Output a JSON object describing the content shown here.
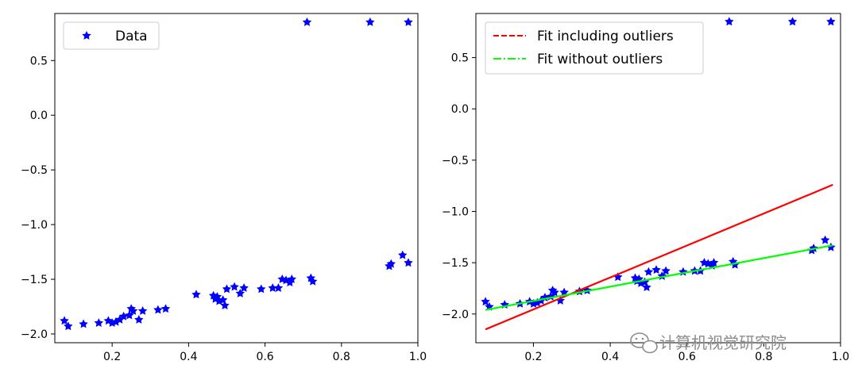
{
  "colors": {
    "data_marker": "#0000ff",
    "fit_with_outliers": "#ff0000",
    "fit_without_outliers": "#00ff00",
    "axes": "#000000",
    "watermark": "#8c8c8c"
  },
  "chart_data": [
    {
      "type": "scatter",
      "xlim": [
        0.05,
        1.0
      ],
      "ylim": [
        -2.08,
        0.93
      ],
      "xticks": [
        "0.2",
        "0.4",
        "0.6",
        "0.8",
        "1.0"
      ],
      "xtick_values": [
        0.2,
        0.4,
        0.6,
        0.8,
        1.0
      ],
      "yticks": [
        "0.5",
        "0.0",
        "−0.5",
        "−1.0",
        "−1.5",
        "−2.0"
      ],
      "ytick_values": [
        0.5,
        0.0,
        -0.5,
        -1.0,
        -1.5,
        -2.0
      ],
      "grid": false,
      "legend_position": "upper-left",
      "series": [
        {
          "name": "Data",
          "marker": "star",
          "color": "#0000ff",
          "points": [
            [
              0.075,
              -1.88
            ],
            [
              0.085,
              -1.93
            ],
            [
              0.125,
              -1.91
            ],
            [
              0.165,
              -1.9
            ],
            [
              0.19,
              -1.88
            ],
            [
              0.2,
              -1.9
            ],
            [
              0.21,
              -1.89
            ],
            [
              0.22,
              -1.87
            ],
            [
              0.23,
              -1.84
            ],
            [
              0.245,
              -1.83
            ],
            [
              0.25,
              -1.77
            ],
            [
              0.255,
              -1.79
            ],
            [
              0.27,
              -1.87
            ],
            [
              0.28,
              -1.79
            ],
            [
              0.32,
              -1.78
            ],
            [
              0.34,
              -1.77
            ],
            [
              0.42,
              -1.64
            ],
            [
              0.465,
              -1.65
            ],
            [
              0.47,
              -1.68
            ],
            [
              0.475,
              -1.66
            ],
            [
              0.48,
              -1.7
            ],
            [
              0.49,
              -1.69
            ],
            [
              0.495,
              -1.74
            ],
            [
              0.5,
              -1.59
            ],
            [
              0.52,
              -1.57
            ],
            [
              0.535,
              -1.63
            ],
            [
              0.545,
              -1.58
            ],
            [
              0.59,
              -1.59
            ],
            [
              0.62,
              -1.58
            ],
            [
              0.635,
              -1.58
            ],
            [
              0.645,
              -1.5
            ],
            [
              0.655,
              -1.51
            ],
            [
              0.665,
              -1.53
            ],
            [
              0.67,
              -1.5
            ],
            [
              0.72,
              -1.49
            ],
            [
              0.725,
              -1.52
            ],
            [
              0.925,
              -1.38
            ],
            [
              0.93,
              -1.36
            ],
            [
              0.96,
              -1.28
            ],
            [
              0.975,
              -1.35
            ],
            [
              0.71,
              0.85
            ],
            [
              0.875,
              0.85
            ],
            [
              0.975,
              0.85
            ]
          ]
        }
      ]
    },
    {
      "type": "scatter",
      "xlim": [
        0.05,
        1.0
      ],
      "ylim": [
        -2.28,
        0.93
      ],
      "xticks": [
        "0.2",
        "0.4",
        "0.6",
        "0.8",
        "1.0"
      ],
      "xtick_values": [
        0.2,
        0.4,
        0.6,
        0.8,
        1.0
      ],
      "yticks": [
        "0.5",
        "0.0",
        "−0.5",
        "−1.0",
        "−1.5",
        "−2.0"
      ],
      "ytick_values": [
        0.5,
        0.0,
        -0.5,
        -1.0,
        -1.5,
        -2.0
      ],
      "grid": false,
      "legend_position": "upper-left",
      "series": [
        {
          "marker": "star",
          "color": "#0000ff",
          "points": [
            [
              0.075,
              -1.88
            ],
            [
              0.085,
              -1.93
            ],
            [
              0.125,
              -1.91
            ],
            [
              0.165,
              -1.9
            ],
            [
              0.19,
              -1.88
            ],
            [
              0.2,
              -1.9
            ],
            [
              0.21,
              -1.89
            ],
            [
              0.22,
              -1.87
            ],
            [
              0.23,
              -1.84
            ],
            [
              0.245,
              -1.83
            ],
            [
              0.25,
              -1.77
            ],
            [
              0.255,
              -1.79
            ],
            [
              0.27,
              -1.87
            ],
            [
              0.28,
              -1.79
            ],
            [
              0.32,
              -1.78
            ],
            [
              0.34,
              -1.77
            ],
            [
              0.42,
              -1.64
            ],
            [
              0.465,
              -1.65
            ],
            [
              0.47,
              -1.68
            ],
            [
              0.475,
              -1.66
            ],
            [
              0.48,
              -1.7
            ],
            [
              0.49,
              -1.69
            ],
            [
              0.495,
              -1.74
            ],
            [
              0.5,
              -1.59
            ],
            [
              0.52,
              -1.57
            ],
            [
              0.535,
              -1.63
            ],
            [
              0.545,
              -1.58
            ],
            [
              0.59,
              -1.59
            ],
            [
              0.62,
              -1.58
            ],
            [
              0.635,
              -1.58
            ],
            [
              0.645,
              -1.5
            ],
            [
              0.655,
              -1.51
            ],
            [
              0.665,
              -1.53
            ],
            [
              0.67,
              -1.5
            ],
            [
              0.72,
              -1.49
            ],
            [
              0.725,
              -1.52
            ],
            [
              0.925,
              -1.38
            ],
            [
              0.93,
              -1.36
            ],
            [
              0.96,
              -1.28
            ],
            [
              0.975,
              -1.35
            ],
            [
              0.71,
              0.85
            ],
            [
              0.875,
              0.85
            ],
            [
              0.975,
              0.85
            ]
          ]
        },
        {
          "name": "Fit including outliers",
          "type": "line",
          "style": "dashed",
          "color": "#ff0000",
          "points": [
            [
              0.075,
              -2.15
            ],
            [
              0.98,
              -0.74
            ]
          ]
        },
        {
          "name": "Fit without outliers",
          "type": "line",
          "style": "dashdot",
          "color": "#00ff00",
          "points": [
            [
              0.075,
              -1.96
            ],
            [
              0.98,
              -1.33
            ]
          ]
        }
      ]
    }
  ],
  "watermark": {
    "text": "计算机视觉研究院",
    "icon": "wechat-icon"
  }
}
